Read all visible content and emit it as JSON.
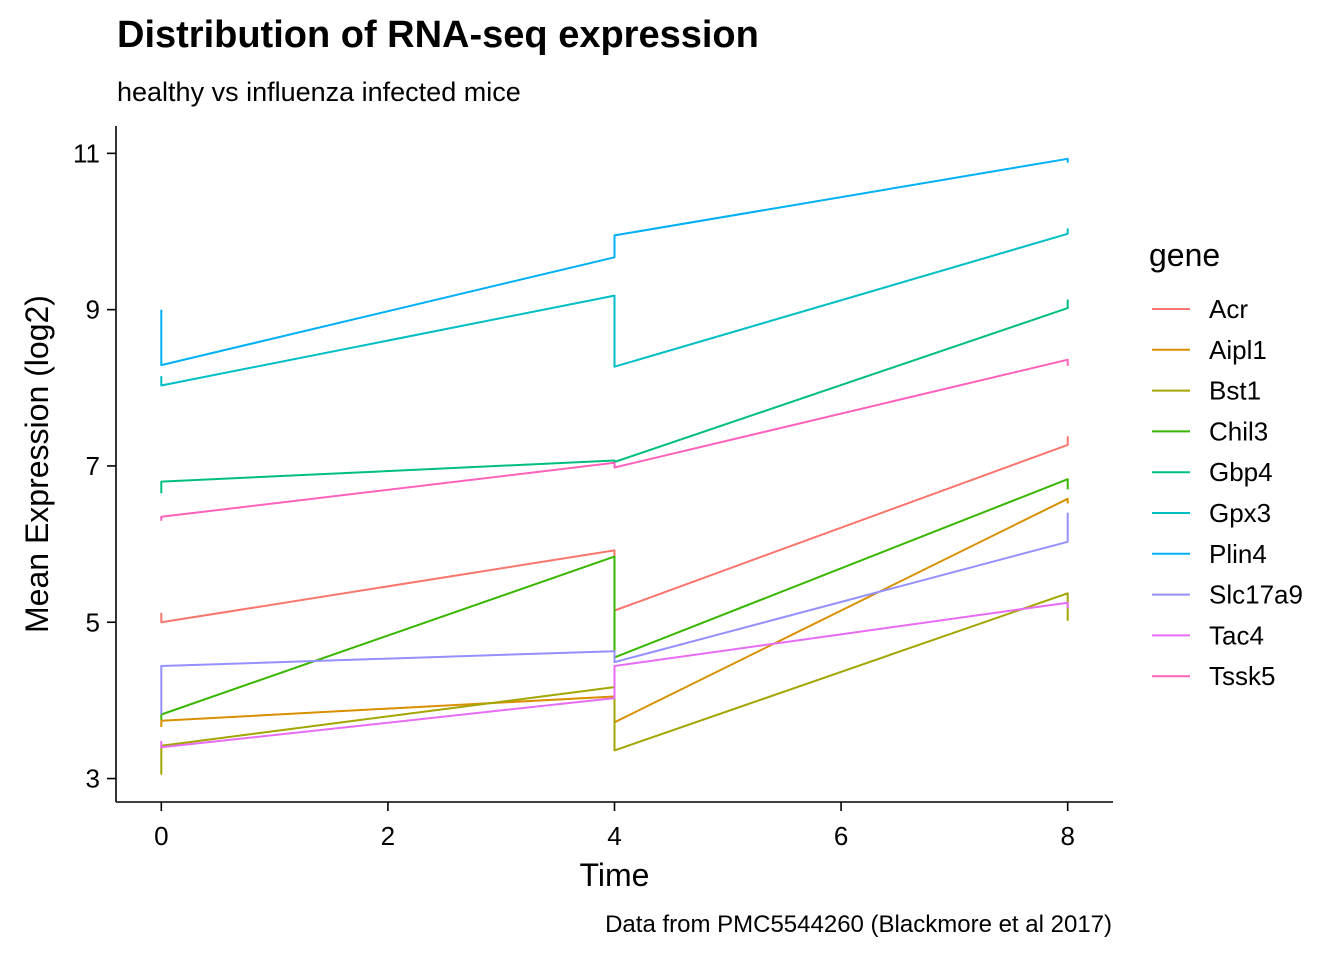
{
  "chart_data": {
    "type": "line",
    "title": "Distribution of RNA-seq expression",
    "subtitle": "healthy vs influenza infected mice",
    "caption": "Data from PMC5544260 (Blackmore et al 2017)",
    "xlabel": "Time",
    "ylabel": "Mean Expression (log2)",
    "xlim": [
      -0.4,
      8.4
    ],
    "ylim": [
      2.7,
      11.35
    ],
    "xticks": [
      0,
      2,
      4,
      6,
      8
    ],
    "yticks": [
      3,
      5,
      7,
      9,
      11
    ],
    "grid": false,
    "legend": {
      "title": "gene",
      "position": "right"
    },
    "series": [
      {
        "name": "Acr",
        "color": "#F8766D",
        "points": [
          [
            0,
            5.12
          ],
          [
            0,
            5.0
          ],
          [
            4,
            5.92
          ],
          [
            4,
            5.15
          ],
          [
            8,
            7.27
          ],
          [
            8,
            7.38
          ]
        ]
      },
      {
        "name": "Aipl1",
        "color": "#D89000",
        "points": [
          [
            0,
            3.66
          ],
          [
            0,
            3.74
          ],
          [
            4,
            4.05
          ],
          [
            4,
            3.72
          ],
          [
            8,
            6.58
          ],
          [
            8,
            6.52
          ]
        ]
      },
      {
        "name": "Bst1",
        "color": "#A3A500",
        "points": [
          [
            0,
            3.05
          ],
          [
            0,
            3.42
          ],
          [
            4,
            4.17
          ],
          [
            4,
            3.36
          ],
          [
            8,
            5.37
          ],
          [
            8,
            5.02
          ]
        ]
      },
      {
        "name": "Chil3",
        "color": "#39B600",
        "points": [
          [
            0,
            3.75
          ],
          [
            0,
            3.82
          ],
          [
            4,
            5.84
          ],
          [
            4,
            4.55
          ],
          [
            8,
            6.83
          ],
          [
            8,
            6.7
          ]
        ]
      },
      {
        "name": "Gbp4",
        "color": "#00BF7D",
        "points": [
          [
            0,
            6.65
          ],
          [
            0,
            6.8
          ],
          [
            4,
            7.07
          ],
          [
            4,
            7.05
          ],
          [
            8,
            9.02
          ],
          [
            8,
            9.13
          ]
        ]
      },
      {
        "name": "Gpx3",
        "color": "#00BFC4",
        "points": [
          [
            0,
            8.15
          ],
          [
            0,
            8.03
          ],
          [
            4,
            9.18
          ],
          [
            4,
            8.27
          ],
          [
            8,
            9.97
          ],
          [
            8,
            10.04
          ]
        ]
      },
      {
        "name": "Plin4",
        "color": "#00B0F6",
        "points": [
          [
            0,
            9.0
          ],
          [
            0,
            8.29
          ],
          [
            4,
            9.67
          ],
          [
            4,
            9.95
          ],
          [
            8,
            10.93
          ],
          [
            8,
            10.88
          ]
        ]
      },
      {
        "name": "Slc17a9",
        "color": "#9590FF",
        "points": [
          [
            0,
            3.82
          ],
          [
            0,
            4.44
          ],
          [
            4,
            4.63
          ],
          [
            4,
            4.49
          ],
          [
            8,
            6.03
          ],
          [
            8,
            6.4
          ]
        ]
      },
      {
        "name": "Tac4",
        "color": "#E76BF3",
        "points": [
          [
            0,
            3.48
          ],
          [
            0,
            3.4
          ],
          [
            4,
            4.03
          ],
          [
            4,
            4.44
          ],
          [
            8,
            5.25
          ],
          [
            8,
            5.18
          ]
        ]
      },
      {
        "name": "Tssk5",
        "color": "#FF62BC",
        "points": [
          [
            0,
            6.3
          ],
          [
            0,
            6.35
          ],
          [
            4,
            7.04
          ],
          [
            4,
            6.98
          ],
          [
            8,
            8.36
          ],
          [
            8,
            8.28
          ]
        ]
      }
    ]
  }
}
